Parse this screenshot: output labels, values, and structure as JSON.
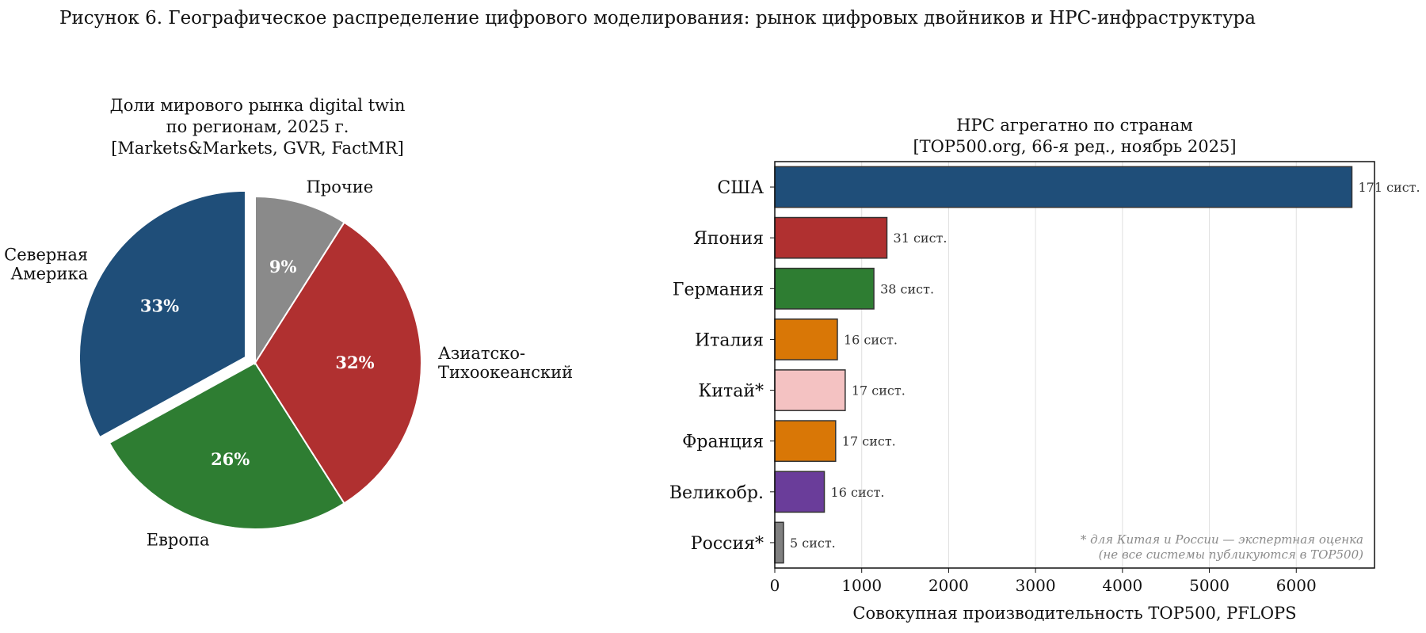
{
  "figure_title": "Рисунок 6. Географическое распределение цифрового моделирования: рынок цифровых двойников и HPC-инфраструктура",
  "chart_data": [
    {
      "type": "pie",
      "title_lines": [
        "Доли мирового рынка digital twin",
        "по регионам, 2025 г.",
        "[Markets&Markets, GVR, FactMR]"
      ],
      "slices": [
        {
          "label_lines": [
            "Северная",
            "Америка"
          ],
          "value": 33,
          "pct_label": "33%",
          "color": "#1f4e79",
          "exploded": true
        },
        {
          "label_lines": [
            "Европа"
          ],
          "value": 26,
          "pct_label": "26%",
          "color": "#2e7d32",
          "exploded": false
        },
        {
          "label_lines": [
            "Азиатско-",
            "Тихоокеанский"
          ],
          "value": 32,
          "pct_label": "32%",
          "color": "#b03030",
          "exploded": false
        },
        {
          "label_lines": [
            "Прочие"
          ],
          "value": 9,
          "pct_label": "9%",
          "color": "#8a8a8a",
          "exploded": false
        }
      ]
    },
    {
      "type": "bar",
      "orientation": "horizontal",
      "title_lines": [
        "HPC агрегатно по странам",
        "[TOP500.org, 66-я ред., ноябрь 2025]"
      ],
      "xlabel": "Совокупная производительность TOP500, PFLOPS",
      "xlim": [
        0,
        6900
      ],
      "xticks": [
        0,
        1000,
        2000,
        3000,
        4000,
        5000,
        6000
      ],
      "grid": "vertical",
      "categories": [
        "США",
        "Япония",
        "Германия",
        "Италия",
        "Китай*",
        "Франция",
        "Великобр.",
        "Россия*"
      ],
      "values": [
        6640,
        1290,
        1140,
        720,
        810,
        700,
        570,
        100
      ],
      "labels": [
        "171 сист.",
        "31 сист.",
        "38 сист.",
        "16 сист.",
        "17 сист.",
        "17 сист.",
        "16 сист.",
        "5 сист."
      ],
      "colors": [
        "#1f4e79",
        "#b03030",
        "#2e7d32",
        "#d97706",
        "#f4c2c2",
        "#d97706",
        "#6a3d9a",
        "#808080"
      ],
      "footnote_lines": [
        "* для Китая и России — экспертная оценка",
        "(не все системы публикуются в TOP500)"
      ]
    }
  ]
}
